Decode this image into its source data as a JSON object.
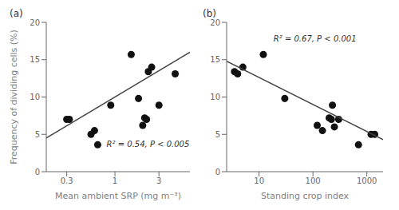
{
  "chart_data": [
    {
      "type": "scatter",
      "title": "(a)",
      "xlabel": "Mean ambient SRP (mg m⁻³)",
      "ylabel": "Frequency of dividing cells (%)",
      "annotation": "R² = 0.54, P < 0.005",
      "log": "x",
      "grid": false,
      "xlim": [
        0.18,
        6.5
      ],
      "ylim": [
        0,
        20
      ],
      "xticks": [
        0.3,
        1,
        3
      ],
      "yticks": [
        0,
        5,
        10,
        15,
        20
      ],
      "series": [
        {
          "type": "scatter",
          "marker": "circle",
          "color": "#111111",
          "x": [
            0.3,
            0.32,
            0.55,
            0.6,
            0.65,
            0.9,
            1.5,
            1.8,
            2.0,
            2.1,
            2.2,
            2.3,
            2.5,
            3.0,
            4.5
          ],
          "values": [
            7.0,
            7.0,
            5.0,
            5.5,
            3.6,
            8.9,
            15.7,
            9.8,
            6.2,
            7.2,
            7.0,
            13.4,
            14.0,
            8.9,
            13.1
          ]
        },
        {
          "type": "line",
          "line_style": "solid",
          "color": "#444444",
          "x": [
            0.18,
            6.5
          ],
          "values": [
            4.5,
            16.0
          ]
        }
      ]
    },
    {
      "type": "scatter",
      "title": "(b)",
      "xlabel": "Standing crop index",
      "annotation": "R² = 0.67, P < 0.001",
      "log": "x",
      "grid": false,
      "xlim": [
        2.5,
        2000
      ],
      "ylim": [
        0,
        20
      ],
      "xticks": [
        10,
        100,
        1000
      ],
      "yticks": [
        0,
        5,
        10,
        15,
        20
      ],
      "series": [
        {
          "type": "scatter",
          "marker": "circle",
          "color": "#111111",
          "x": [
            3.5,
            4.0,
            5.0,
            12.0,
            30.0,
            120.0,
            150.0,
            200.0,
            220.0,
            230.0,
            250.0,
            300.0,
            700.0,
            1200.0,
            1400.0
          ],
          "values": [
            13.4,
            13.1,
            14.0,
            15.7,
            9.8,
            6.2,
            5.5,
            7.2,
            7.0,
            8.9,
            6.0,
            7.0,
            3.6,
            5.0,
            5.0
          ]
        },
        {
          "type": "line",
          "line_style": "solid",
          "color": "#444444",
          "x": [
            2.5,
            2000
          ],
          "values": [
            14.8,
            4.3
          ]
        }
      ]
    }
  ]
}
